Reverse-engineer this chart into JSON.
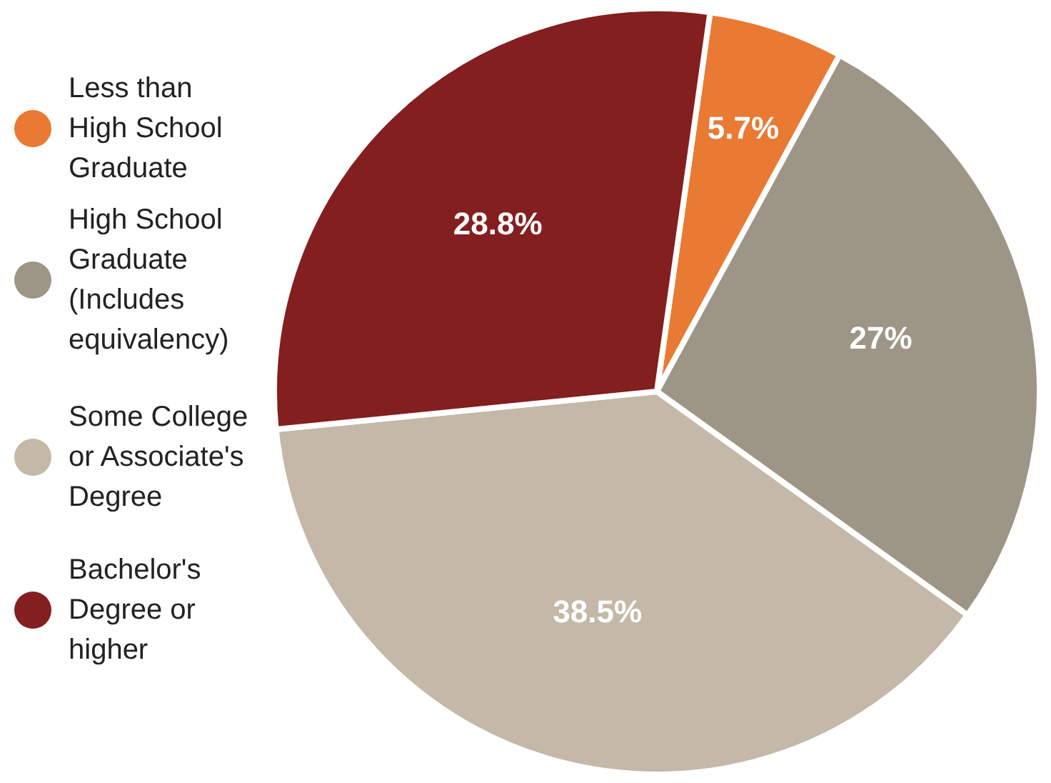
{
  "chart_data": {
    "type": "pie",
    "categories": [
      "Less than High School Graduate",
      "High School Graduate (Includes equivalency)",
      "Some College or Associate's Degree",
      "Bachelor's Degree or higher"
    ],
    "values": [
      5.7,
      27,
      38.5,
      28.8
    ],
    "colors": [
      "#e97a33",
      "#9d9586",
      "#c4b8a8",
      "#841f1f"
    ],
    "value_labels": [
      "5.7%",
      "27%",
      "38.5%",
      "28.8%"
    ],
    "legend": "left"
  }
}
